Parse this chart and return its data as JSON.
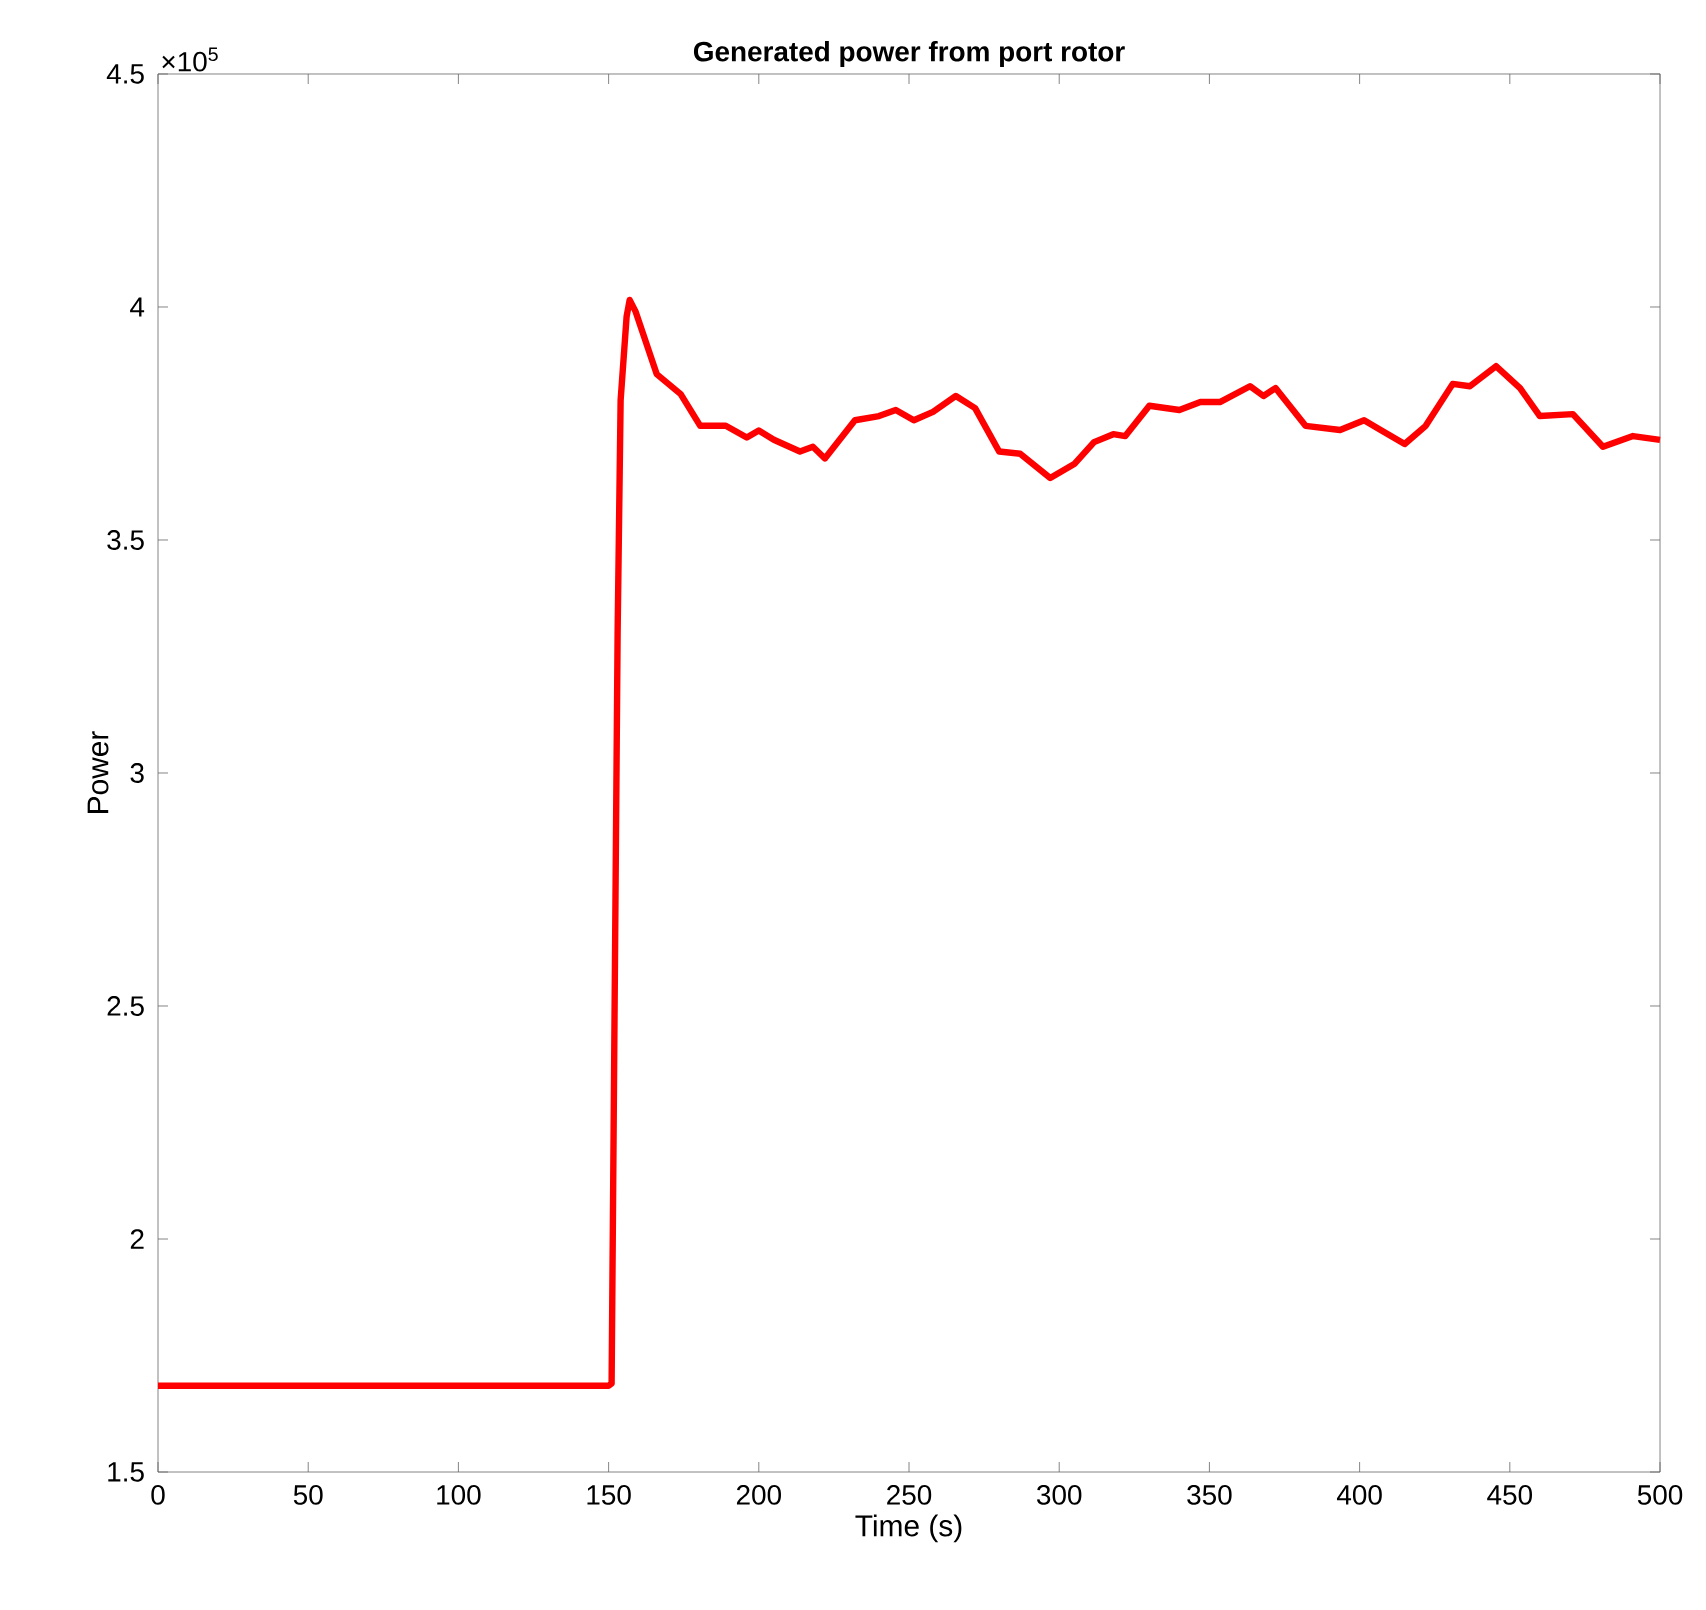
{
  "chart_data": {
    "type": "line",
    "title": "Generated power from port rotor",
    "xlabel": "Time (s)",
    "ylabel": "Power",
    "annotations": [
      "×10$^{5}$"
    ],
    "xlim": [
      0,
      500
    ],
    "ylim": [
      1.5,
      4.5
    ],
    "xticks": [
      0,
      50,
      100,
      150,
      200,
      250,
      300,
      350,
      400,
      450,
      500
    ],
    "yticks": [
      1.5,
      2,
      2.5,
      3,
      3.5,
      4,
      4.5
    ],
    "grid": false,
    "marker": "none",
    "line_style": "solid",
    "series": [
      {
        "color": "#ff0000",
        "x": [
          0,
          50,
          100,
          150,
          151,
          152,
          153,
          154,
          156,
          157,
          159,
          166,
          174,
          180.5,
          189,
          196,
          200,
          205,
          213.7,
          218,
          222,
          232,
          240,
          245.6,
          251.6,
          258,
          265.6,
          272,
          280,
          287,
          297,
          305,
          311.6,
          318,
          322,
          330,
          340,
          347,
          353.5,
          363.5,
          368,
          372,
          382,
          393.5,
          401.5,
          407,
          415,
          422,
          431,
          436.7,
          445.4,
          453.4,
          460,
          471,
          481,
          491,
          500
        ],
        "values": [
          1.685,
          1.685,
          1.685,
          1.685,
          1.69,
          2.5,
          3.3,
          3.8,
          3.98,
          4.015,
          3.99,
          3.856,
          3.813,
          3.745,
          3.745,
          3.72,
          3.735,
          3.715,
          3.69,
          3.7,
          3.675,
          3.757,
          3.766,
          3.779,
          3.757,
          3.775,
          3.809,
          3.783,
          3.69,
          3.685,
          3.633,
          3.663,
          3.71,
          3.727,
          3.723,
          3.788,
          3.779,
          3.796,
          3.796,
          3.83,
          3.809,
          3.826,
          3.745,
          3.736,
          3.757,
          3.736,
          3.706,
          3.745,
          3.835,
          3.83,
          3.873,
          3.826,
          3.766,
          3.77,
          3.7,
          3.723,
          3.715
        ]
      }
    ]
  }
}
